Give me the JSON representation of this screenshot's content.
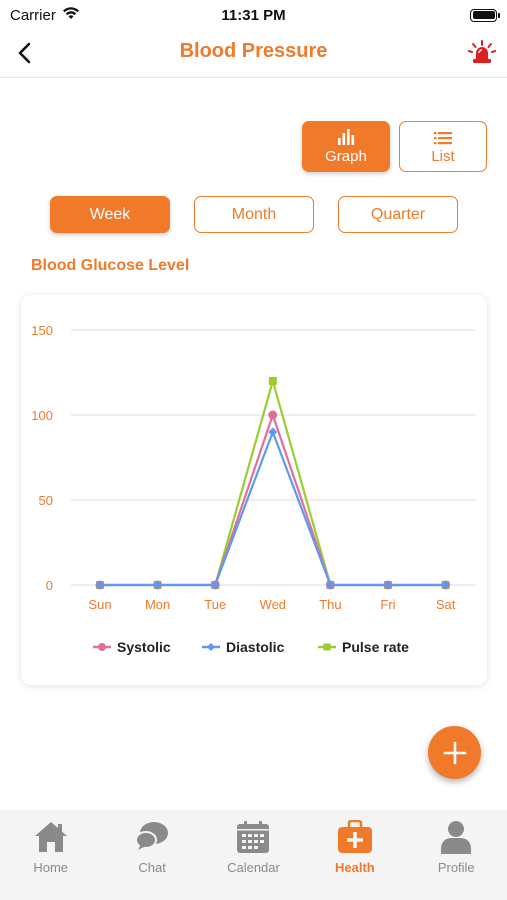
{
  "status_bar": {
    "carrier": "Carrier",
    "time": "11:31 PM"
  },
  "header": {
    "title": "Blood Pressure",
    "back_icon": "chevron-left-icon",
    "alarm_icon": "siren-icon"
  },
  "view_toggle": [
    {
      "label": "Graph",
      "icon": "bar-chart-icon",
      "active": true
    },
    {
      "label": "List",
      "icon": "list-icon",
      "active": false
    }
  ],
  "periods": [
    {
      "label": "Week",
      "active": true
    },
    {
      "label": "Month",
      "active": false
    },
    {
      "label": "Quarter",
      "active": false
    }
  ],
  "section_title": "Blood Glucose Level",
  "colors": {
    "accent": "#f07a2a",
    "systolic": "#e0709a",
    "diastolic": "#5b9af0",
    "pulse": "#9acd32",
    "grid": "#dddddd",
    "tab_inactive": "#8a8a8a"
  },
  "chart_data": {
    "type": "line",
    "categories": [
      "Sun",
      "Mon",
      "Tue",
      "Wed",
      "Thu",
      "Fri",
      "Sat"
    ],
    "y_ticks": [
      "0",
      "50",
      "100",
      "150"
    ],
    "ylim": [
      0,
      150
    ],
    "grid": true,
    "legend_position": "bottom",
    "series": [
      {
        "name": "Systolic",
        "marker": "circle",
        "color": "#e0709a",
        "values": [
          0,
          0,
          0,
          100,
          0,
          0,
          0
        ]
      },
      {
        "name": "Diastolic",
        "marker": "diamond",
        "color": "#5b9af0",
        "values": [
          0,
          0,
          0,
          90,
          0,
          0,
          0
        ]
      },
      {
        "name": "Pulse rate",
        "marker": "square",
        "color": "#9acd32",
        "values": [
          0,
          0,
          0,
          120,
          0,
          0,
          0
        ]
      }
    ]
  },
  "fab": {
    "icon": "plus-icon"
  },
  "tabs": [
    {
      "label": "Home",
      "icon": "home-icon",
      "active": false
    },
    {
      "label": "Chat",
      "icon": "chat-bubbles-icon",
      "active": false
    },
    {
      "label": "Calendar",
      "icon": "calendar-icon",
      "active": false
    },
    {
      "label": "Health",
      "icon": "first-aid-kit-icon",
      "active": true
    },
    {
      "label": "Profile",
      "icon": "person-icon",
      "active": false
    }
  ]
}
